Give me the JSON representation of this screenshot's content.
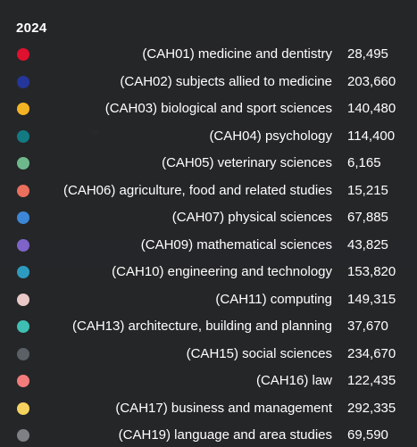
{
  "tooltip": {
    "title": "2024",
    "rows": [
      {
        "label": "(CAH01) medicine and dentistry",
        "value": "28,495",
        "color": "#e0102f"
      },
      {
        "label": "(CAH02) subjects allied to medicine",
        "value": "203,660",
        "color": "#25369a"
      },
      {
        "label": "(CAH03) biological and sport sciences",
        "value": "140,480",
        "color": "#f3b424"
      },
      {
        "label": "(CAH04) psychology",
        "value": "114,400",
        "color": "#127a82"
      },
      {
        "label": "(CAH05) veterinary sciences",
        "value": "6,165",
        "color": "#6db98c"
      },
      {
        "label": "(CAH06) agriculture, food and related studies",
        "value": "15,215",
        "color": "#ea6f5c"
      },
      {
        "label": "(CAH07) physical sciences",
        "value": "67,885",
        "color": "#3d87d8"
      },
      {
        "label": "(CAH09) mathematical sciences",
        "value": "43,825",
        "color": "#7e63c9"
      },
      {
        "label": "(CAH10) engineering and technology",
        "value": "153,820",
        "color": "#2d9bbf"
      },
      {
        "label": "(CAH11) computing",
        "value": "149,315",
        "color": "#e8c9c6"
      },
      {
        "label": "(CAH13) architecture, building and planning",
        "value": "37,670",
        "color": "#3fbfb3"
      },
      {
        "label": "(CAH15) social sciences",
        "value": "234,670",
        "color": "#5b6066"
      },
      {
        "label": "(CAH16) law",
        "value": "122,435",
        "color": "#f27c7c"
      },
      {
        "label": "(CAH17) business and management",
        "value": "292,335",
        "color": "#f6d35e"
      },
      {
        "label": "(CAH19) language and area studies",
        "value": "69,590",
        "color": "#7d8185"
      }
    ]
  }
}
